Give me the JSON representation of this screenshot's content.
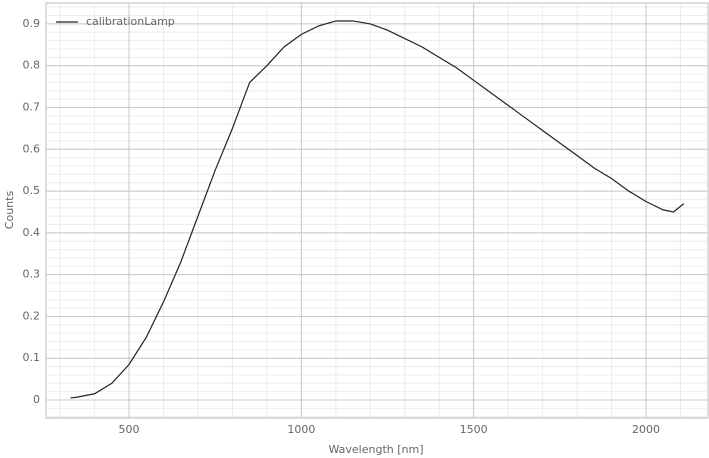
{
  "chart_data": {
    "type": "line",
    "x_label": "Wavelength [nm]",
    "y_label": "Counts",
    "xlim": [
      259,
      2180
    ],
    "ylim": [
      -0.043,
      0.95
    ],
    "xticks": [
      500,
      1000,
      1500,
      2000
    ],
    "yticks": [
      0,
      0.1,
      0.2,
      0.3,
      0.4,
      0.5,
      0.6,
      0.7,
      0.8,
      0.9
    ],
    "grid": true,
    "minor_grid": true,
    "legend": "top-left",
    "series": [
      {
        "name": "calibrationLamp",
        "color": "#222222",
        "x": [
          330,
          350,
          400,
          450,
          500,
          550,
          600,
          650,
          700,
          750,
          800,
          850,
          900,
          950,
          1000,
          1050,
          1100,
          1150,
          1200,
          1250,
          1300,
          1350,
          1400,
          1450,
          1500,
          1550,
          1600,
          1650,
          1700,
          1750,
          1800,
          1850,
          1900,
          1950,
          2000,
          2050,
          2080,
          2110
        ],
        "values": [
          0.005,
          0.007,
          0.015,
          0.04,
          0.085,
          0.15,
          0.235,
          0.33,
          0.44,
          0.55,
          0.65,
          0.76,
          0.8,
          0.845,
          0.875,
          0.895,
          0.907,
          0.907,
          0.9,
          0.885,
          0.865,
          0.845,
          0.82,
          0.795,
          0.765,
          0.735,
          0.705,
          0.675,
          0.645,
          0.615,
          0.585,
          0.555,
          0.53,
          0.5,
          0.475,
          0.455,
          0.45,
          0.47
        ]
      }
    ]
  }
}
